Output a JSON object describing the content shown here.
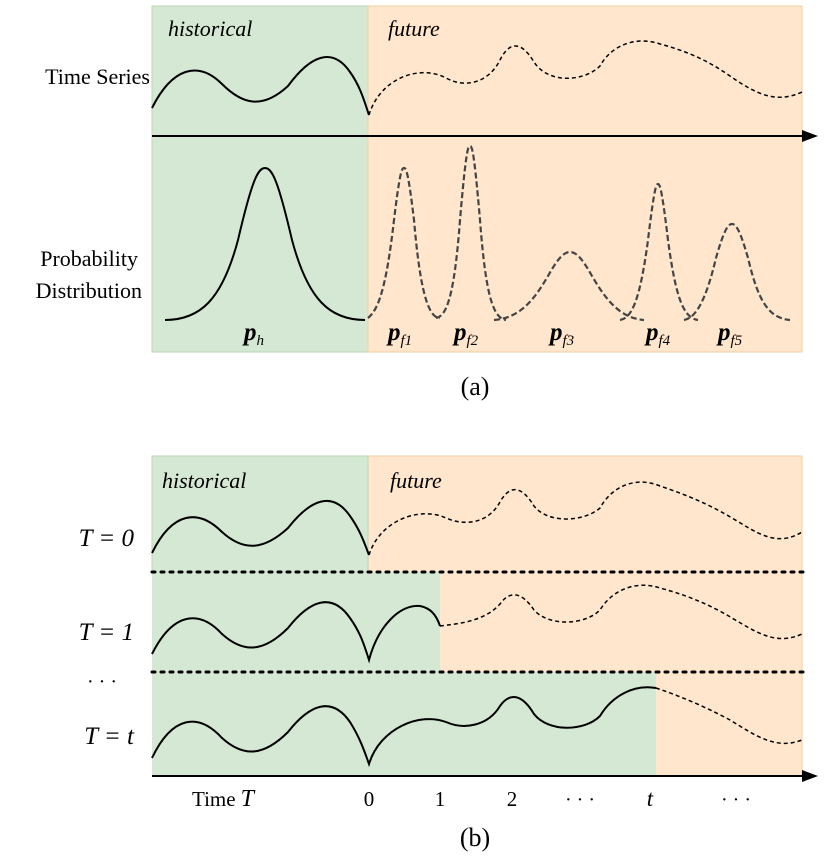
{
  "panel_a": {
    "region_historical": "historical",
    "region_future": "future",
    "row_time_series": "Time Series",
    "row_prob_line1": "Probability",
    "row_prob_line2": "Distribution",
    "dist_labels": [
      {
        "main": "p",
        "sub": "h"
      },
      {
        "main": "p",
        "sub": "f1"
      },
      {
        "main": "p",
        "sub": "f2"
      },
      {
        "main": "p",
        "sub": "f3"
      },
      {
        "main": "p",
        "sub": "f4"
      },
      {
        "main": "p",
        "sub": "f5"
      }
    ],
    "caption": "(a)"
  },
  "panel_b": {
    "region_historical": "historical",
    "region_future": "future",
    "rows": [
      {
        "label": "T = 0"
      },
      {
        "label": "T = 1"
      },
      {
        "label": "T = t"
      }
    ],
    "row_ellipsis": "· · ·",
    "axis_time_prefix": "Time",
    "axis_time_var": "T",
    "axis_ticks": [
      "0",
      "1",
      "2",
      "· · ·",
      "t",
      "· · ·"
    ],
    "caption": "(b)"
  },
  "colors": {
    "historical_fill": "#d5e8d4",
    "future_fill": "#ffe6cc",
    "historical_border": "#b9d7b4",
    "future_border": "#f3cfa5"
  }
}
